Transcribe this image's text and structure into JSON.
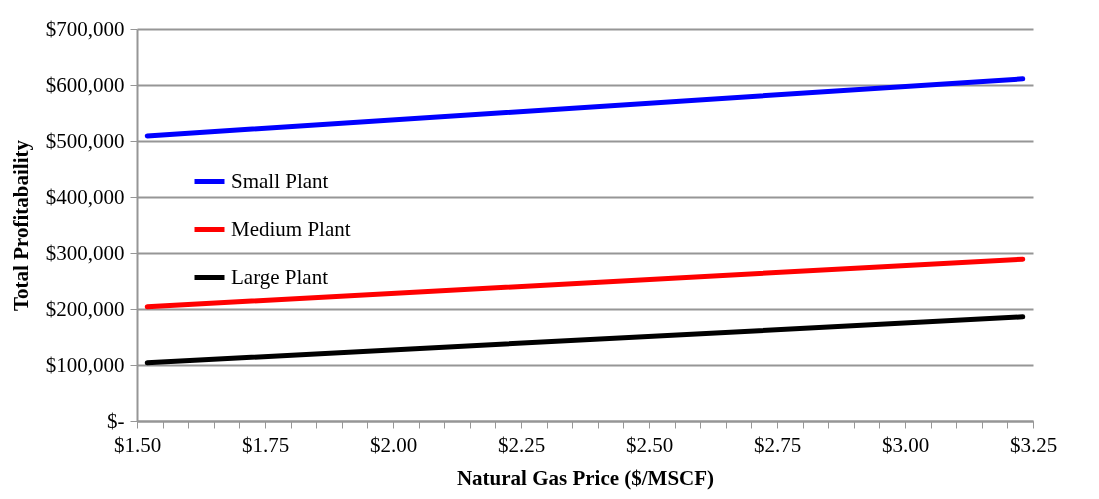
{
  "chart_data": {
    "type": "line",
    "xlabel": "Natural Gas Price ($/MSCF)",
    "ylabel": "Total Profitabaility",
    "x": [
      1.52,
      3.23
    ],
    "series": [
      {
        "name": "Small Plant",
        "color": "#0000ff",
        "values": [
          509000,
          611000
        ]
      },
      {
        "name": "Medium Plant",
        "color": "#ff0000",
        "values": [
          204000,
          289000
        ]
      },
      {
        "name": "Large Plant",
        "color": "#000000",
        "values": [
          104000,
          186000
        ]
      }
    ],
    "xlim": [
      1.5,
      3.25
    ],
    "xticks": [
      {
        "value": 1.5,
        "label": "$1.50"
      },
      {
        "value": 1.55,
        "label": null
      },
      {
        "value": 1.6,
        "label": null
      },
      {
        "value": 1.65,
        "label": null
      },
      {
        "value": 1.7,
        "label": null
      },
      {
        "value": 1.75,
        "label": "$1.75"
      },
      {
        "value": 1.8,
        "label": null
      },
      {
        "value": 1.85,
        "label": null
      },
      {
        "value": 1.9,
        "label": null
      },
      {
        "value": 1.95,
        "label": null
      },
      {
        "value": 2,
        "label": "$2.00"
      },
      {
        "value": 2.05,
        "label": null
      },
      {
        "value": 2.1,
        "label": null
      },
      {
        "value": 2.15,
        "label": null
      },
      {
        "value": 2.2,
        "label": null
      },
      {
        "value": 2.25,
        "label": "$2.25"
      },
      {
        "value": 2.3,
        "label": null
      },
      {
        "value": 2.35,
        "label": null
      },
      {
        "value": 2.4,
        "label": null
      },
      {
        "value": 2.45,
        "label": null
      },
      {
        "value": 2.5,
        "label": "$2.50"
      },
      {
        "value": 2.55,
        "label": null
      },
      {
        "value": 2.6,
        "label": null
      },
      {
        "value": 2.65,
        "label": null
      },
      {
        "value": 2.7,
        "label": null
      },
      {
        "value": 2.75,
        "label": "$2.75"
      },
      {
        "value": 2.8,
        "label": null
      },
      {
        "value": 2.85,
        "label": null
      },
      {
        "value": 2.9,
        "label": null
      },
      {
        "value": 2.95,
        "label": null
      },
      {
        "value": 3,
        "label": "$3.00"
      },
      {
        "value": 3.05,
        "label": null
      },
      {
        "value": 3.1,
        "label": null
      },
      {
        "value": 3.15,
        "label": null
      },
      {
        "value": 3.2,
        "label": null
      },
      {
        "value": 3.25,
        "label": "$3.25"
      }
    ],
    "ylim": [
      0,
      700000
    ],
    "yticks": [
      {
        "value": 0,
        "label": "$-"
      },
      {
        "value": 100000,
        "label": "$100,000"
      },
      {
        "value": 200000,
        "label": "$200,000"
      },
      {
        "value": 300000,
        "label": "$300,000"
      },
      {
        "value": 400000,
        "label": "$400,000"
      },
      {
        "value": 500000,
        "label": "$500,000"
      },
      {
        "value": 600000,
        "label": "$600,000"
      },
      {
        "value": 700000,
        "label": "$700,000"
      }
    ],
    "grid": "y",
    "legend": "left",
    "marker": "none",
    "line_style": "solid"
  }
}
